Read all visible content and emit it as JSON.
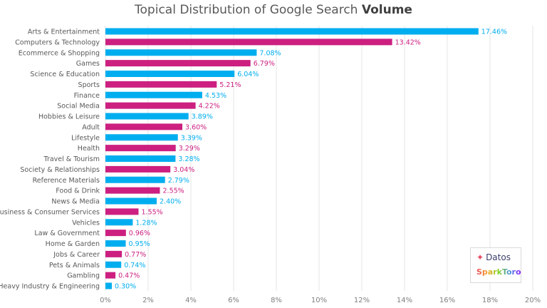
{
  "chart_data": {
    "type": "bar",
    "orientation": "horizontal",
    "title": "Topical Distribution of Google Search",
    "title_bold": "Volume",
    "categories": [
      "Arts & Entertainment",
      "Computers & Technology",
      "Ecommerce & Shopping",
      "Games",
      "Science & Education",
      "Sports",
      "Finance",
      "Social Media",
      "Hobbies & Leisure",
      "Adult",
      "Lifestyle",
      "Health",
      "Travel & Tourism",
      "Society & Relationships",
      "Reference Materials",
      "Food & Drink",
      "News & Media",
      "Business & Consumer Services",
      "Vehicles",
      "Law & Government",
      "Home & Garden",
      "Jobs & Career",
      "Pets & Animals",
      "Gambling",
      "Heavy Industry & Engineering"
    ],
    "values": [
      17.46,
      13.42,
      7.08,
      6.79,
      6.04,
      5.21,
      4.53,
      4.22,
      3.89,
      3.6,
      3.39,
      3.29,
      3.28,
      3.04,
      2.79,
      2.55,
      2.4,
      1.55,
      1.28,
      0.96,
      0.95,
      0.77,
      0.74,
      0.47,
      0.3
    ],
    "data_labels": [
      "17.46%",
      "13.42%",
      "7.08%",
      "6.79%",
      "6.04%",
      "5.21%",
      "4.53%",
      "4.22%",
      "3.89%",
      "3.60%",
      "3.39%",
      "3.29%",
      "3.28%",
      "3.04%",
      "2.79%",
      "2.55%",
      "2.40%",
      "1.55%",
      "1.28%",
      "0.96%",
      "0.95%",
      "0.77%",
      "0.74%",
      "0.47%",
      "0.30%"
    ],
    "colors": [
      "#00aeef",
      "#cc1f80"
    ],
    "color_pattern": "alternating",
    "xlim": [
      0,
      20
    ],
    "xticks": [
      "0%",
      "2%",
      "4%",
      "6%",
      "8%",
      "10%",
      "12%",
      "14%",
      "16%",
      "18%",
      "20%"
    ],
    "grid": "vertical",
    "xlabel": "",
    "ylabel": ""
  },
  "logo": {
    "datos": "Datos",
    "sparktoro": "SparkToro"
  }
}
